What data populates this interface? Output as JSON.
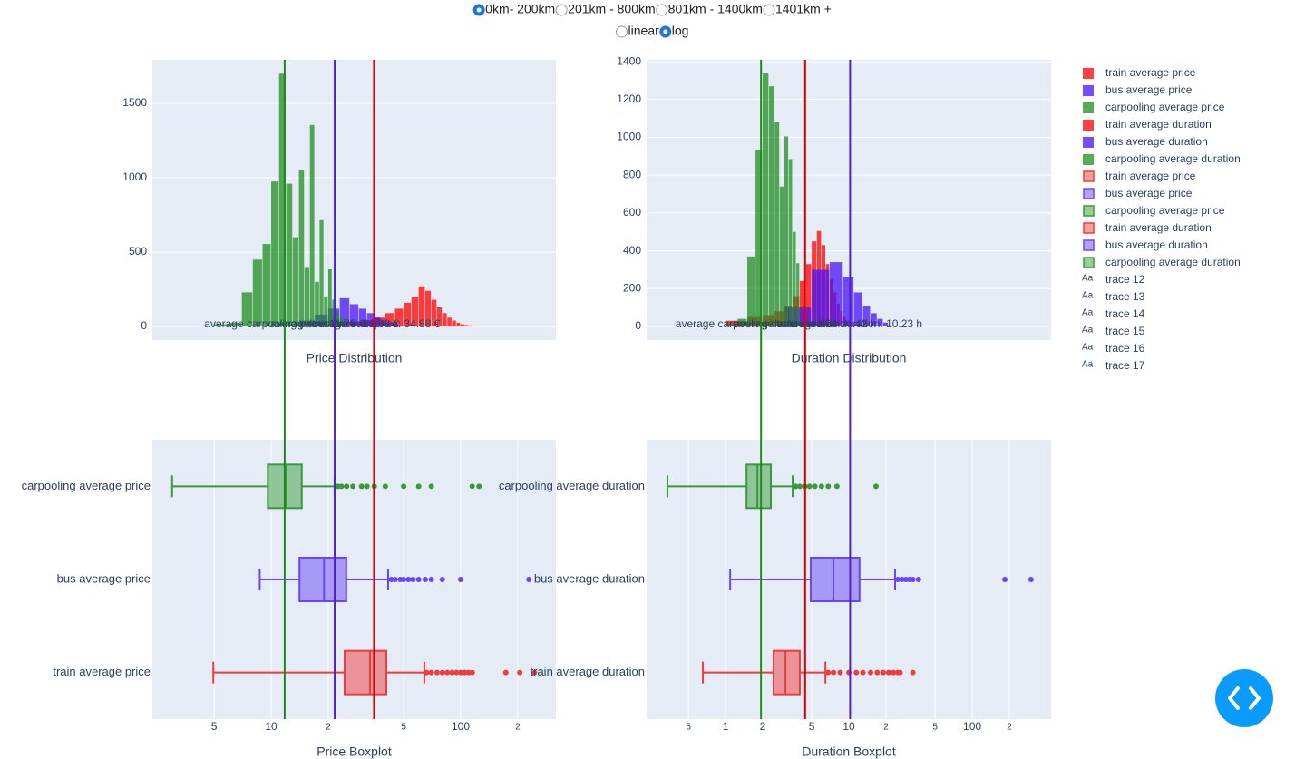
{
  "controls": {
    "distance": {
      "options": [
        "0km- 200km",
        "201km - 800km",
        "801km - 1400km",
        "1401km +"
      ],
      "selected": 0
    },
    "scale": {
      "options": [
        "linear",
        "log"
      ],
      "selected": 1
    }
  },
  "legend_text_symbol": "Aa",
  "chart_data": [
    {
      "type": "histogram",
      "title": "Price Distribution",
      "xlog": true,
      "xlim": [
        2.36,
        318
      ],
      "ylim": [
        -91,
        1793
      ],
      "yticks": [
        0,
        500,
        1000,
        1500
      ],
      "grid": true,
      "opacity": 0.75,
      "series": [
        {
          "name": "train average price",
          "color": "#ff0000",
          "bins": [
            15,
            20,
            25,
            30,
            35,
            40,
            45,
            50,
            55,
            60,
            65,
            70,
            75,
            80,
            85,
            90,
            95,
            100,
            105,
            110,
            115,
            120,
            125
          ],
          "values": [
            10,
            20,
            30,
            40,
            60,
            90,
            120,
            160,
            200,
            270,
            240,
            180,
            130,
            90,
            60,
            40,
            25,
            15,
            10,
            8,
            5,
            3
          ]
        },
        {
          "name": "bus average price",
          "color": "#4713f8",
          "bins": [
            14,
            17,
            20,
            23,
            26,
            29,
            32,
            35,
            38,
            41,
            44,
            47,
            50
          ],
          "values": [
            40,
            80,
            120,
            190,
            150,
            120,
            90,
            60,
            40,
            25,
            15,
            8
          ]
        },
        {
          "name": "carpooling average price",
          "color": "#1f8f1f",
          "bins": [
            5,
            6,
            7,
            8,
            9,
            10,
            11,
            12,
            13,
            14,
            15,
            16,
            17,
            18,
            19,
            20,
            21,
            22,
            23,
            24,
            25
          ],
          "values": [
            15,
            25,
            230,
            450,
            555,
            975,
            1700,
            960,
            600,
            1050,
            400,
            1355,
            300,
            715,
            200,
            385,
            180,
            100,
            60,
            30
          ]
        }
      ],
      "annotations": [
        {
          "name": "trace 12",
          "text": "average carpooling price: 11.78 €",
          "value": 11.78,
          "line_color": "#1a8a1a"
        },
        {
          "name": "trace 13",
          "text": "average bus price: 21.63 €",
          "value": 21.63,
          "line_color": "#5020d0"
        },
        {
          "name": "trace 14",
          "text": "average train price: 34.88 €",
          "value": 34.88,
          "line_color": "#e00000"
        }
      ]
    },
    {
      "type": "histogram",
      "title": "Duration Distribution",
      "xlog": true,
      "xlim": [
        0.229,
        436
      ],
      "ylim": [
        -72,
        1410
      ],
      "yticks": [
        0,
        200,
        400,
        600,
        800,
        1000,
        1200,
        1400
      ],
      "grid": true,
      "opacity": 0.75,
      "series": [
        {
          "name": "train average duration",
          "color": "#ff0000",
          "bins": [
            1,
            1.5,
            2,
            2.5,
            3,
            3.5,
            4,
            4.5,
            5,
            5.5,
            6,
            6.5,
            7,
            7.5,
            8,
            8.5,
            9,
            9.5,
            10,
            10.5,
            11,
            11.5,
            12
          ],
          "values": [
            30,
            50,
            60,
            80,
            110,
            160,
            240,
            330,
            450,
            505,
            430,
            330,
            250,
            180,
            120,
            80,
            50,
            30,
            20,
            12,
            8,
            5
          ]
        },
        {
          "name": "bus average duration",
          "color": "#4713f8",
          "bins": [
            3,
            5,
            7,
            9,
            11,
            13,
            15,
            17,
            19,
            21
          ],
          "values": [
            100,
            300,
            340,
            260,
            180,
            110,
            70,
            40,
            20
          ]
        },
        {
          "name": "carpooling average duration",
          "color": "#1f8f1f",
          "bins": [
            1,
            1.25,
            1.5,
            1.75,
            2,
            2.25,
            2.5,
            2.75,
            3,
            3.25,
            3.5,
            3.75,
            4
          ],
          "values": [
            15,
            40,
            370,
            935,
            1340,
            1270,
            1080,
            740,
            1005,
            885,
            500,
            335
          ]
        }
      ],
      "annotations": [
        {
          "name": "trace 15",
          "text": "average carpooling duration: 1.94 h",
          "value": 1.94,
          "line_color": "#1a8a1a"
        },
        {
          "name": "trace 16",
          "text": "average train duration: 4.42 h",
          "value": 4.42,
          "line_color": "#e00000"
        },
        {
          "name": "trace 17",
          "text": "average bus duration: 10.23 h",
          "value": 10.23,
          "line_color": "#5020d0"
        }
      ]
    },
    {
      "type": "box",
      "title": "Price Boxplot",
      "xlog": true,
      "xlim": [
        2.36,
        318
      ],
      "grid": true,
      "opacity": 0.5,
      "xticks": [
        5,
        10,
        {
          "value": 20,
          "label": "2"
        },
        {
          "value": 50,
          "label": "5"
        },
        100,
        {
          "value": 200,
          "label": "2"
        }
      ],
      "series": [
        {
          "name": "train average price",
          "color": "#ef3b3b",
          "min": 4.95,
          "q1": 24.4,
          "median": 33.2,
          "q3": 40.5,
          "max": 64.3,
          "outliers": [
            66,
            70,
            75,
            80,
            85,
            90,
            95,
            100,
            105,
            110,
            115,
            173,
            205,
            245
          ]
        },
        {
          "name": "bus average price",
          "color": "#6a45f5",
          "min": 8.7,
          "q1": 14.1,
          "median": 19.0,
          "q3": 24.9,
          "max": 41.4,
          "outliers": [
            43,
            45,
            48,
            50,
            53,
            56,
            60,
            65,
            70,
            80,
            100,
            229
          ]
        },
        {
          "name": "carpooling average price",
          "color": "#3a9a3a",
          "min": 3.0,
          "q1": 9.6,
          "median": 12.0,
          "q3": 14.5,
          "max": 21.6,
          "outliers": [
            22.5,
            23.5,
            25,
            27,
            30,
            32,
            35,
            40,
            50,
            60,
            70,
            115,
            125
          ]
        }
      ]
    },
    {
      "type": "box",
      "title": "Duration Boxplot",
      "xlog": true,
      "xlim": [
        0.229,
        436
      ],
      "grid": true,
      "opacity": 0.5,
      "xticks": [
        {
          "value": 0.5,
          "label": "5"
        },
        1,
        2,
        5,
        10,
        {
          "value": 20,
          "label": "2"
        },
        {
          "value": 50,
          "label": "5"
        },
        100,
        {
          "value": 200,
          "label": "2"
        }
      ],
      "series": [
        {
          "name": "train average duration",
          "color": "#ef3b3b",
          "min": 0.655,
          "q1": 2.45,
          "median": 3.06,
          "q3": 4.0,
          "max": 6.45,
          "outliers": [
            6.8,
            7.5,
            8.5,
            10,
            11.5,
            13,
            15,
            17,
            19,
            21,
            23,
            25,
            26,
            33
          ]
        },
        {
          "name": "bus average duration",
          "color": "#6a45f5",
          "min": 1.09,
          "q1": 4.91,
          "median": 7.5,
          "q3": 12.2,
          "max": 23.7,
          "outliers": [
            25,
            27,
            29,
            31,
            33,
            36.7,
            184,
            300
          ]
        },
        {
          "name": "carpooling average duration",
          "color": "#3a9a3a",
          "min": 0.338,
          "q1": 1.48,
          "median": 1.81,
          "q3": 2.33,
          "max": 3.5,
          "outliers": [
            3.7,
            4,
            4.4,
            4.8,
            5.3,
            6,
            6.8,
            8,
            16.6
          ]
        }
      ]
    }
  ]
}
